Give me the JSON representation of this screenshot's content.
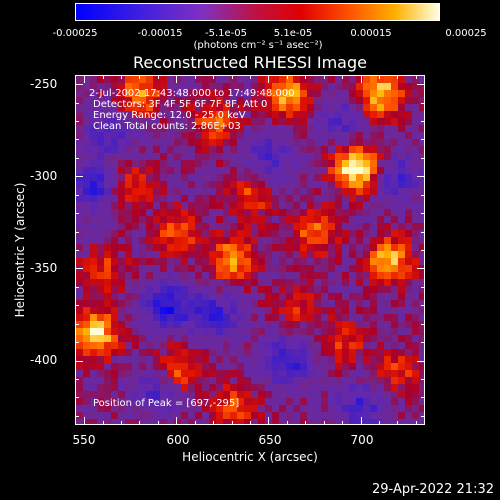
{
  "colorbar": {
    "ticks": [
      "-0.00025",
      "-0.00015",
      "-5.1e-05",
      "5.1e-05",
      "0.00015",
      "0.00025"
    ],
    "unit": "(photons cm⁻² s⁻¹ asec⁻²)",
    "range": [
      -0.00025,
      0.00025
    ]
  },
  "title": "Reconstructed RHESSI Image",
  "annotations": {
    "time": "2-Jul-2002 17:43:48.000 to 17:49:48.000",
    "detectors": "Detectors: 3F 4F 5F 6F 7F 8F, Att 0",
    "energy": "Energy Range: 12.0 - 25.0 keV",
    "clean": "Clean     Total counts: 2.86E+03",
    "peak": "Position of Peak = [697,-295]"
  },
  "axes": {
    "xlabel": "Heliocentric X (arcsec)",
    "ylabel": "Heliocentric Y (arcsec)",
    "xticks": [
      "550",
      "600",
      "650",
      "700"
    ],
    "yticks": [
      "-250",
      "-300",
      "-350",
      "-400"
    ]
  },
  "timestamp": "29-Apr-2022 21:32",
  "chart_data": {
    "type": "heatmap",
    "title": "Reconstructed RHESSI Image",
    "xlabel": "Heliocentric X (arcsec)",
    "ylabel": "Heliocentric Y (arcsec)",
    "xlim": [
      545,
      735
    ],
    "ylim": [
      -435,
      -245
    ],
    "xticks": [
      550,
      600,
      650,
      700
    ],
    "yticks": [
      -250,
      -300,
      -350,
      -400
    ],
    "colorbar_range": [
      -0.00025,
      0.00025
    ],
    "colorbar_ticks": [
      -0.00025,
      -0.00015,
      -5.1e-05,
      5.1e-05,
      0.00015,
      0.00025
    ],
    "peak": [
      697,
      -295
    ],
    "hotspots": [
      {
        "x": 697,
        "y": -295,
        "level": 1.0
      },
      {
        "x": 555,
        "y": -385,
        "level": 0.9
      },
      {
        "x": 710,
        "y": -255,
        "level": 0.8
      },
      {
        "x": 715,
        "y": -345,
        "level": 0.75
      },
      {
        "x": 660,
        "y": -255,
        "level": 0.7
      },
      {
        "x": 630,
        "y": -345,
        "level": 0.7
      },
      {
        "x": 580,
        "y": -255,
        "level": 0.65
      },
      {
        "x": 600,
        "y": -405,
        "level": 0.6
      },
      {
        "x": 675,
        "y": -330,
        "level": 0.55
      },
      {
        "x": 620,
        "y": -270,
        "level": 0.5
      },
      {
        "x": 600,
        "y": -330,
        "level": 0.5
      },
      {
        "x": 640,
        "y": -310,
        "level": 0.45
      },
      {
        "x": 575,
        "y": -305,
        "level": 0.45
      },
      {
        "x": 720,
        "y": -405,
        "level": 0.4
      },
      {
        "x": 690,
        "y": -390,
        "level": 0.4
      },
      {
        "x": 630,
        "y": -425,
        "level": 0.45
      },
      {
        "x": 560,
        "y": -350,
        "level": 0.4
      },
      {
        "x": 665,
        "y": -370,
        "level": 0.35
      }
    ],
    "coldspots": [
      {
        "x": 595,
        "y": -370,
        "level": -0.7
      },
      {
        "x": 555,
        "y": -305,
        "level": -0.6
      },
      {
        "x": 660,
        "y": -400,
        "level": -0.6
      },
      {
        "x": 620,
        "y": -375,
        "level": -0.55
      },
      {
        "x": 700,
        "y": -425,
        "level": -0.5
      },
      {
        "x": 590,
        "y": -415,
        "level": -0.5
      },
      {
        "x": 650,
        "y": -290,
        "level": -0.45
      },
      {
        "x": 565,
        "y": -275,
        "level": -0.45
      },
      {
        "x": 720,
        "y": -300,
        "level": -0.45
      },
      {
        "x": 690,
        "y": -270,
        "level": -0.4
      }
    ]
  }
}
